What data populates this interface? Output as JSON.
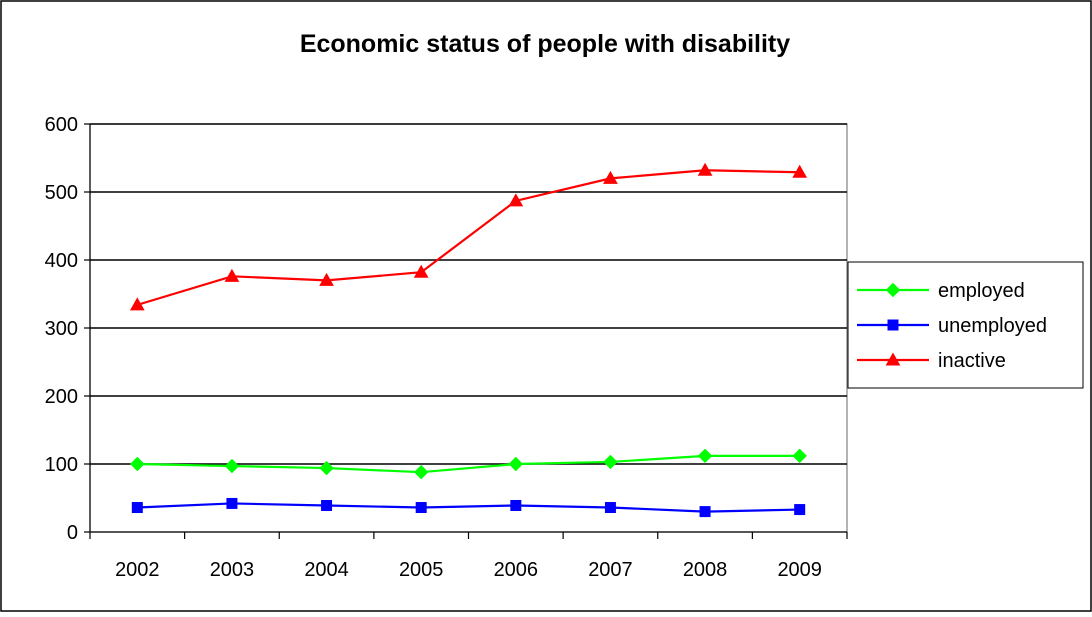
{
  "chart_data": {
    "type": "line",
    "title": "Economic status of people with disability",
    "xlabel": "",
    "ylabel": "",
    "categories": [
      "2002",
      "2003",
      "2004",
      "2005",
      "2006",
      "2007",
      "2008",
      "2009"
    ],
    "yticks": [
      "0",
      "100",
      "200",
      "300",
      "400",
      "500",
      "600"
    ],
    "ylim": [
      0,
      600
    ],
    "grid": true,
    "legend_position": "right",
    "series": [
      {
        "name": "employed",
        "color": "#00ff00",
        "marker": "diamond",
        "values": [
          100,
          97,
          94,
          88,
          100,
          103,
          112,
          112
        ]
      },
      {
        "name": "unemployed",
        "color": "#0000ff",
        "marker": "square",
        "values": [
          36,
          42,
          39,
          36,
          39,
          36,
          30,
          33
        ]
      },
      {
        "name": "inactive",
        "color": "#ff0000",
        "marker": "triangle",
        "values": [
          334,
          376,
          370,
          382,
          487,
          520,
          532,
          529
        ]
      }
    ]
  }
}
